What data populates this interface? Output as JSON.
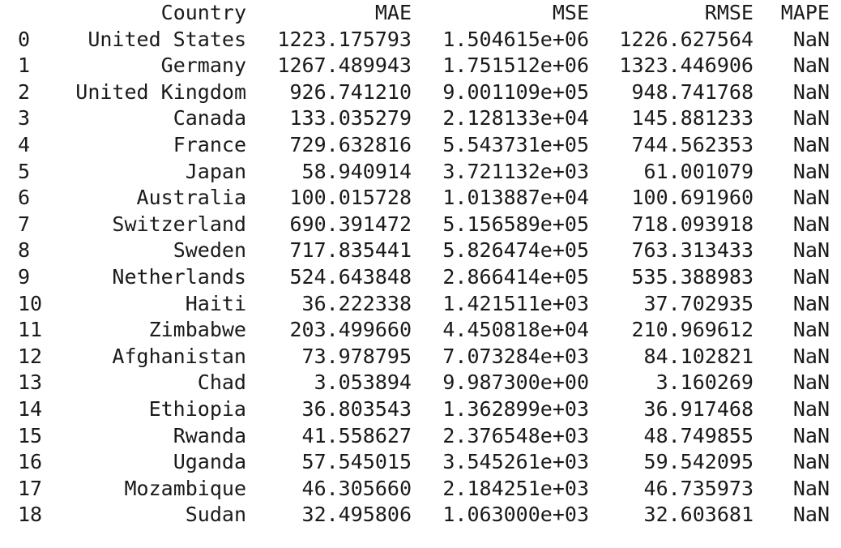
{
  "table": {
    "columns": [
      "Country",
      "MAE",
      "MSE",
      "RMSE",
      "MAPE"
    ],
    "rows": [
      {
        "index": "0",
        "Country": "United States",
        "MAE": "1223.175793",
        "MSE": "1.504615e+06",
        "RMSE": "1226.627564",
        "MAPE": "NaN"
      },
      {
        "index": "1",
        "Country": "Germany",
        "MAE": "1267.489943",
        "MSE": "1.751512e+06",
        "RMSE": "1323.446906",
        "MAPE": "NaN"
      },
      {
        "index": "2",
        "Country": "United Kingdom",
        "MAE": "926.741210",
        "MSE": "9.001109e+05",
        "RMSE": "948.741768",
        "MAPE": "NaN"
      },
      {
        "index": "3",
        "Country": "Canada",
        "MAE": "133.035279",
        "MSE": "2.128133e+04",
        "RMSE": "145.881233",
        "MAPE": "NaN"
      },
      {
        "index": "4",
        "Country": "France",
        "MAE": "729.632816",
        "MSE": "5.543731e+05",
        "RMSE": "744.562353",
        "MAPE": "NaN"
      },
      {
        "index": "5",
        "Country": "Japan",
        "MAE": "58.940914",
        "MSE": "3.721132e+03",
        "RMSE": "61.001079",
        "MAPE": "NaN"
      },
      {
        "index": "6",
        "Country": "Australia",
        "MAE": "100.015728",
        "MSE": "1.013887e+04",
        "RMSE": "100.691960",
        "MAPE": "NaN"
      },
      {
        "index": "7",
        "Country": "Switzerland",
        "MAE": "690.391472",
        "MSE": "5.156589e+05",
        "RMSE": "718.093918",
        "MAPE": "NaN"
      },
      {
        "index": "8",
        "Country": "Sweden",
        "MAE": "717.835441",
        "MSE": "5.826474e+05",
        "RMSE": "763.313433",
        "MAPE": "NaN"
      },
      {
        "index": "9",
        "Country": "Netherlands",
        "MAE": "524.643848",
        "MSE": "2.866414e+05",
        "RMSE": "535.388983",
        "MAPE": "NaN"
      },
      {
        "index": "10",
        "Country": "Haiti",
        "MAE": "36.222338",
        "MSE": "1.421511e+03",
        "RMSE": "37.702935",
        "MAPE": "NaN"
      },
      {
        "index": "11",
        "Country": "Zimbabwe",
        "MAE": "203.499660",
        "MSE": "4.450818e+04",
        "RMSE": "210.969612",
        "MAPE": "NaN"
      },
      {
        "index": "12",
        "Country": "Afghanistan",
        "MAE": "73.978795",
        "MSE": "7.073284e+03",
        "RMSE": "84.102821",
        "MAPE": "NaN"
      },
      {
        "index": "13",
        "Country": "Chad",
        "MAE": "3.053894",
        "MSE": "9.987300e+00",
        "RMSE": "3.160269",
        "MAPE": "NaN"
      },
      {
        "index": "14",
        "Country": "Ethiopia",
        "MAE": "36.803543",
        "MSE": "1.362899e+03",
        "RMSE": "36.917468",
        "MAPE": "NaN"
      },
      {
        "index": "15",
        "Country": "Rwanda",
        "MAE": "41.558627",
        "MSE": "2.376548e+03",
        "RMSE": "48.749855",
        "MAPE": "NaN"
      },
      {
        "index": "16",
        "Country": "Uganda",
        "MAE": "57.545015",
        "MSE": "3.545261e+03",
        "RMSE": "59.542095",
        "MAPE": "NaN"
      },
      {
        "index": "17",
        "Country": "Mozambique",
        "MAE": "46.305660",
        "MSE": "2.184251e+03",
        "RMSE": "46.735973",
        "MAPE": "NaN"
      },
      {
        "index": "18",
        "Country": "Sudan",
        "MAE": "32.495806",
        "MSE": "1.063000e+03",
        "RMSE": "32.603681",
        "MAPE": "NaN"
      }
    ]
  }
}
